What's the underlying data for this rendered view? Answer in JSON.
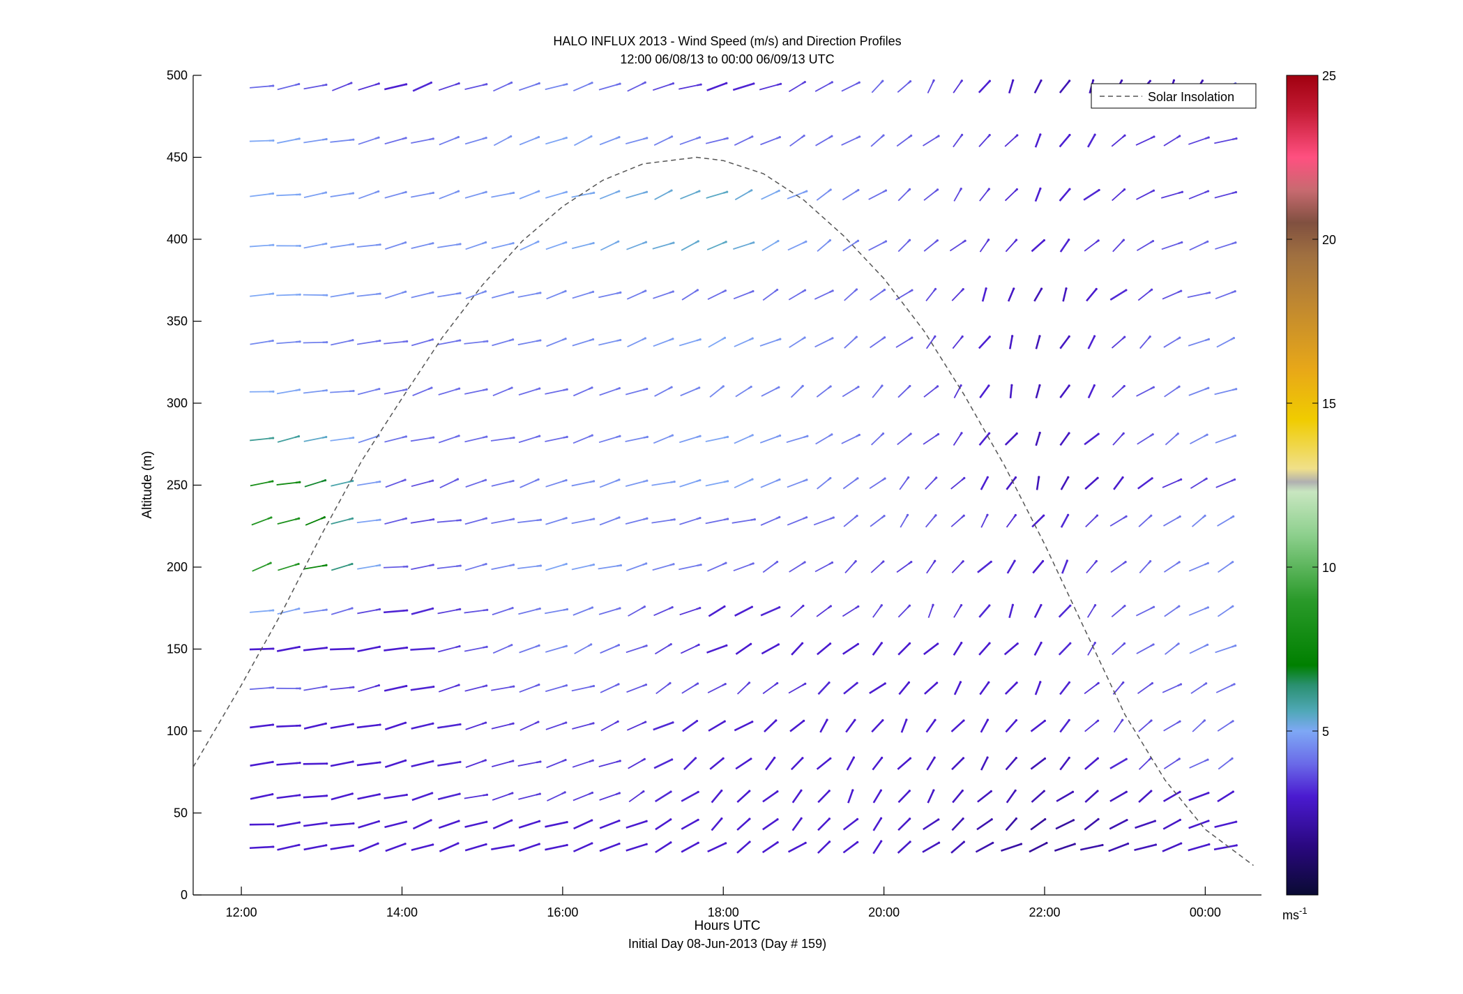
{
  "chart_data": {
    "type": "scatter",
    "subtype": "wind barb / direction profile",
    "title": "HALO INFLUX 2013 - Wind Speed (m/s) and Direction Profiles",
    "subtitle": "12:00 06/08/13 to 00:00 06/09/13  UTC",
    "xlabel": "Hours UTC",
    "xlabel2": "Initial Day 08-Jun-2013 (Day # 159)",
    "ylabel": "Altitude (m)",
    "xlim": [
      11.4,
      24.7
    ],
    "ylim": [
      0,
      500
    ],
    "x_ticks": [
      {
        "value": 12,
        "label": "12:00"
      },
      {
        "value": 14,
        "label": "14:00"
      },
      {
        "value": 16,
        "label": "16:00"
      },
      {
        "value": 18,
        "label": "18:00"
      },
      {
        "value": 20,
        "label": "20:00"
      },
      {
        "value": 22,
        "label": "22:00"
      },
      {
        "value": 24,
        "label": "00:00"
      }
    ],
    "y_ticks": [
      0,
      50,
      100,
      150,
      200,
      250,
      300,
      350,
      400,
      450,
      500
    ],
    "grid": false,
    "legend": {
      "position": "top-right",
      "entries": [
        {
          "label": "Solar Insolation",
          "style": "dashed",
          "color": "#555555"
        }
      ]
    },
    "colorbar": {
      "label": "ms-1",
      "range": [
        0,
        25
      ],
      "ticks": [
        5,
        10,
        15,
        20,
        25
      ],
      "stops": [
        {
          "v": 0,
          "c": "#0a0a33"
        },
        {
          "v": 1.5,
          "c": "#2a0880"
        },
        {
          "v": 3,
          "c": "#4a1ad0"
        },
        {
          "v": 4,
          "c": "#6a6ae8"
        },
        {
          "v": 5,
          "c": "#7ea8f5"
        },
        {
          "v": 5.6,
          "c": "#50a8b8"
        },
        {
          "v": 6.4,
          "c": "#2a9070"
        },
        {
          "v": 7,
          "c": "#008000"
        },
        {
          "v": 9,
          "c": "#2a9a2a"
        },
        {
          "v": 11,
          "c": "#8ed08e"
        },
        {
          "v": 12.3,
          "c": "#c8e6c0"
        },
        {
          "v": 12.6,
          "c": "#b0b0b0"
        },
        {
          "v": 13,
          "c": "#f0e08a"
        },
        {
          "v": 14.5,
          "c": "#f0cc00"
        },
        {
          "v": 16,
          "c": "#e8a818"
        },
        {
          "v": 18,
          "c": "#c08830"
        },
        {
          "v": 19.5,
          "c": "#a07040"
        },
        {
          "v": 20.5,
          "c": "#805040"
        },
        {
          "v": 21.5,
          "c": "#c86a70"
        },
        {
          "v": 22.5,
          "c": "#ff5080"
        },
        {
          "v": 24,
          "c": "#c01830"
        },
        {
          "v": 25,
          "c": "#a00010"
        }
      ]
    },
    "solar_insolation": {
      "peak_time": 17.67,
      "peak_altitude": 450,
      "points": [
        [
          11.4,
          78
        ],
        [
          12.0,
          128
        ],
        [
          12.5,
          172
        ],
        [
          13.0,
          220
        ],
        [
          13.5,
          265
        ],
        [
          14.0,
          303
        ],
        [
          14.5,
          340
        ],
        [
          15.0,
          372
        ],
        [
          15.5,
          399
        ],
        [
          16.0,
          420
        ],
        [
          16.5,
          436
        ],
        [
          17.0,
          446
        ],
        [
          17.67,
          450
        ],
        [
          18.0,
          448
        ],
        [
          18.5,
          440
        ],
        [
          19.0,
          424
        ],
        [
          19.5,
          402
        ],
        [
          20.0,
          376
        ],
        [
          20.5,
          344
        ],
        [
          21.0,
          305
        ],
        [
          21.5,
          262
        ],
        [
          22.0,
          214
        ],
        [
          22.5,
          162
        ],
        [
          23.0,
          110
        ],
        [
          23.5,
          70
        ],
        [
          24.0,
          40
        ],
        [
          24.6,
          18
        ]
      ]
    },
    "profiles": [
      {
        "t": 12.5,
        "alt": [
          493,
          460,
          427,
          396,
          366,
          337,
          307,
          278,
          251,
          228,
          200,
          173,
          150,
          126,
          103,
          80,
          60,
          43,
          29
        ],
        "dir": [
          110,
          100,
          105,
          95,
          95,
          95,
          100,
          105,
          110,
          120,
          120,
          110,
          100,
          100,
          100,
          100,
          100,
          100,
          100
        ],
        "spd": [
          4,
          5,
          5,
          5,
          5,
          4.5,
          5,
          6,
          8,
          8.5,
          9,
          5,
          3,
          4,
          3,
          3,
          3,
          3,
          3
        ]
      },
      {
        "t": 14.0,
        "alt": [
          493,
          460,
          427,
          396,
          366,
          337,
          307,
          278,
          251,
          228,
          200,
          173,
          150,
          126,
          103,
          80,
          60,
          43,
          29
        ],
        "dir": [
          120,
          120,
          115,
          115,
          110,
          110,
          115,
          115,
          120,
          105,
          105,
          105,
          105,
          110,
          115,
          110,
          115,
          120,
          125
        ],
        "spd": [
          3,
          4,
          4.5,
          4.5,
          4.5,
          4,
          4,
          4,
          3.5,
          3.5,
          3.5,
          3,
          3,
          3,
          3,
          3,
          3,
          3,
          3
        ]
      },
      {
        "t": 16.0,
        "alt": [
          493,
          460,
          427,
          396,
          366,
          337,
          307,
          278,
          251,
          228,
          200,
          173,
          150,
          126,
          103,
          80,
          60,
          43,
          29
        ],
        "dir": [
          125,
          125,
          120,
          120,
          120,
          115,
          120,
          115,
          120,
          115,
          110,
          120,
          125,
          120,
          120,
          120,
          120,
          120,
          115
        ],
        "spd": [
          4.5,
          5,
          5,
          5,
          4.5,
          4.5,
          4,
          4,
          4.5,
          4.5,
          5,
          4.5,
          4.5,
          4,
          3.5,
          3.5,
          3.5,
          3,
          3
        ]
      },
      {
        "t": 18.0,
        "alt": [
          493,
          460,
          427,
          396,
          366,
          337,
          307,
          278,
          251,
          228,
          200,
          173,
          150,
          126,
          103,
          80,
          60,
          43,
          29
        ],
        "dir": [
          115,
          125,
          125,
          130,
          130,
          130,
          135,
          120,
          115,
          110,
          125,
          130,
          135,
          140,
          140,
          145,
          150,
          145,
          140
        ],
        "spd": [
          3,
          4,
          5.5,
          5.5,
          4,
          5,
          4.5,
          5,
          5,
          4,
          4,
          3,
          3,
          3.5,
          3,
          3,
          3,
          3,
          3
        ]
      },
      {
        "t": 20.0,
        "alt": [
          493,
          460,
          427,
          396,
          366,
          337,
          307,
          278,
          251,
          228,
          200,
          173,
          150,
          126,
          103,
          80,
          60,
          43,
          29
        ],
        "dir": [
          150,
          140,
          145,
          140,
          145,
          140,
          150,
          140,
          150,
          150,
          150,
          155,
          150,
          150,
          160,
          160,
          160,
          155,
          150
        ],
        "spd": [
          4,
          4,
          4,
          4,
          4,
          4,
          4,
          4,
          4,
          4,
          3.5,
          3.5,
          3,
          3,
          3,
          3,
          3,
          3,
          3
        ]
      },
      {
        "t": 22.0,
        "alt": [
          493,
          460,
          427,
          396,
          366,
          337,
          307,
          278,
          251,
          228,
          200,
          173,
          150,
          126,
          103,
          80,
          60,
          43,
          29
        ],
        "dir": [
          165,
          165,
          160,
          160,
          170,
          175,
          170,
          165,
          165,
          160,
          160,
          165,
          160,
          160,
          155,
          150,
          150,
          140,
          125
        ],
        "spd": [
          2.5,
          3,
          3,
          3,
          2.5,
          2.5,
          2.5,
          2.5,
          2.5,
          3,
          3,
          3,
          3,
          3,
          3,
          2.5,
          2.5,
          2,
          2
        ]
      },
      {
        "t": 24.0,
        "alt": [
          460,
          427,
          396,
          366,
          337,
          307,
          278,
          251,
          228,
          200,
          173,
          150,
          126,
          103,
          80,
          60,
          43,
          29
        ],
        "dir": [
          120,
          120,
          120,
          120,
          125,
          125,
          130,
          130,
          135,
          135,
          130,
          130,
          135,
          140,
          140,
          130,
          125,
          115
        ],
        "spd": [
          3.5,
          3.5,
          4,
          4,
          4.5,
          4.5,
          4.5,
          3.5,
          4.5,
          4.5,
          4.5,
          4.5,
          4,
          4,
          4,
          3,
          3,
          3
        ]
      }
    ]
  }
}
